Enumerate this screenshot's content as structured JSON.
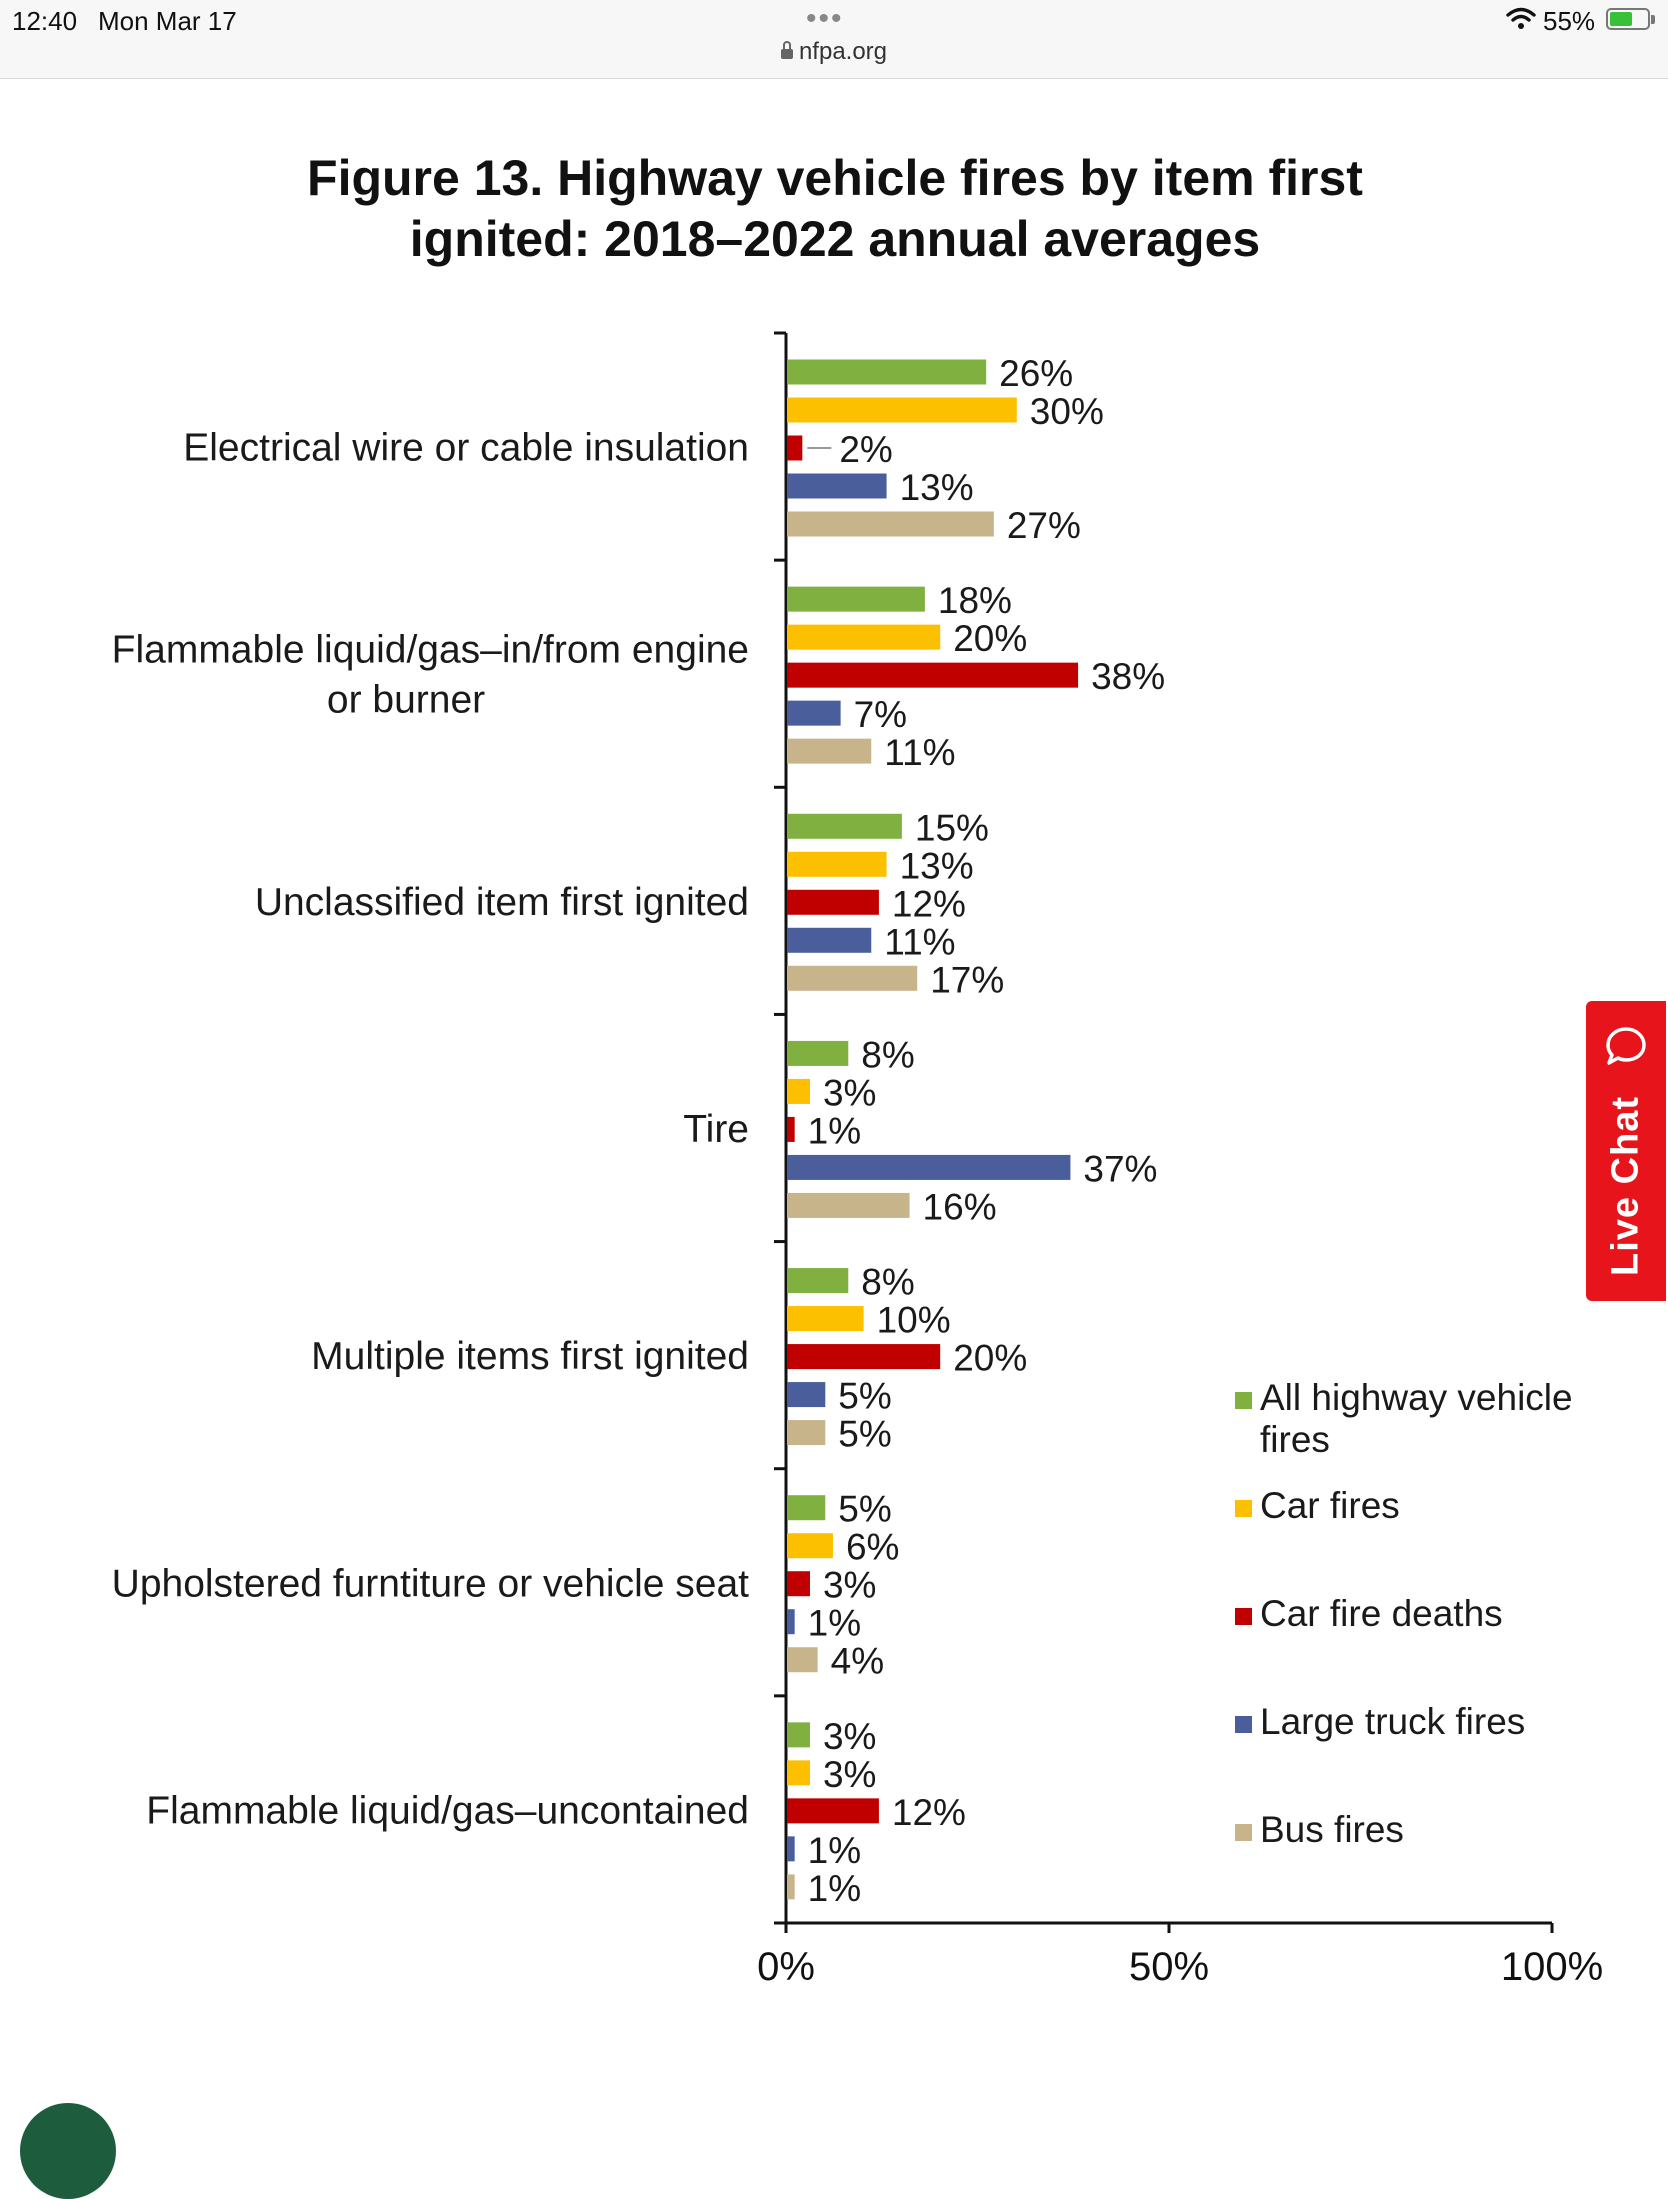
{
  "status_bar": {
    "time": "12:40",
    "date": "Mon Mar 17",
    "url": "nfpa.org",
    "battery": "55%",
    "menu_dots": "•••"
  },
  "live_chat": {
    "label": "Live Chat",
    "color": "#e8141b"
  },
  "chart_data": {
    "type": "bar",
    "orientation": "horizontal",
    "title": "Figure 13. Highway vehicle fires by item first ignited: 2018–2022 annual averages",
    "title_lines": [
      "Figure 13. Highway vehicle fires by item first",
      "ignited: 2018–2022 annual averages"
    ],
    "categories": [
      [
        "Electrical wire or cable insulation"
      ],
      [
        "Flammable liquid/gas–in/from engine",
        "or burner"
      ],
      [
        "Unclassified item first ignited"
      ],
      [
        "Tire"
      ],
      [
        "Multiple items first ignited"
      ],
      [
        "Upholstered furntiture or vehicle seat"
      ],
      [
        "Flammable liquid/gas–uncontained"
      ]
    ],
    "series": [
      {
        "name": "All highway vehicle fires",
        "legend_lines": [
          "All highway vehicle",
          "fires"
        ],
        "color": "#7fb040",
        "values": [
          26,
          18,
          15,
          8,
          8,
          5,
          3
        ]
      },
      {
        "name": "Car fires",
        "legend_lines": [
          "Car fires"
        ],
        "color": "#fcc000",
        "values": [
          30,
          20,
          13,
          3,
          10,
          6,
          3
        ]
      },
      {
        "name": "Car fire deaths",
        "legend_lines": [
          "Car fire deaths"
        ],
        "color": "#c00000",
        "values": [
          2,
          38,
          12,
          1,
          20,
          3,
          12
        ]
      },
      {
        "name": "Large truck fires",
        "legend_lines": [
          "Large truck fires"
        ],
        "color": "#4a5e9c",
        "values": [
          13,
          7,
          11,
          37,
          5,
          1,
          1
        ]
      },
      {
        "name": "Bus fires",
        "legend_lines": [
          "Bus fires"
        ],
        "color": "#c8b48a",
        "values": [
          27,
          11,
          17,
          16,
          5,
          4,
          1
        ]
      }
    ],
    "value_suffix": "%",
    "xlim": [
      0,
      100
    ],
    "x_ticks": [
      0,
      50,
      100
    ],
    "x_tick_labels": [
      "0%",
      "50%",
      "100%"
    ],
    "xlabel": "",
    "ylabel": "",
    "grid": false,
    "legend_position": "right"
  }
}
